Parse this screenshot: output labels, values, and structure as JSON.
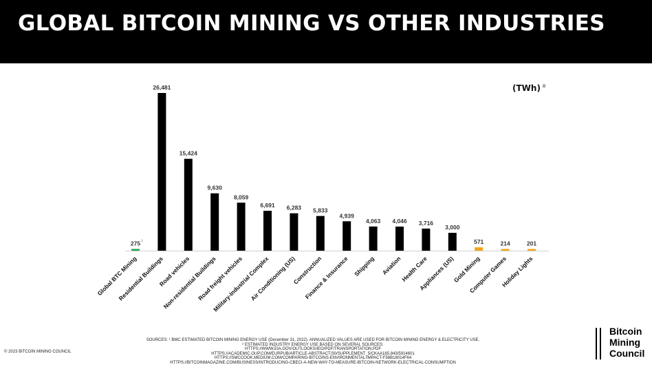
{
  "header": {
    "title": "GLOBAL BITCOIN MINING VS OTHER INDUSTRIES"
  },
  "chart_data": {
    "type": "bar",
    "title": "GLOBAL BITCOIN MINING VS OTHER INDUSTRIES",
    "unit_label": "(TWh)",
    "unit_note": "ii",
    "categories": [
      "Global BTC Mining",
      "Residential Buildings",
      "Road vehicles",
      "Non-residential Buildings",
      "Road freight vehicles",
      "Military-Industrial Complex",
      "Air Conditioning (US)",
      "Construction",
      "Finance & Insurance",
      "Shipping",
      "Aviation",
      "Health Care",
      "Appliances (US)",
      "Gold Mining",
      "Computer Games",
      "Holiday Lights"
    ],
    "values": [
      275,
      26481,
      15424,
      9630,
      8059,
      6691,
      6283,
      5833,
      4939,
      4063,
      4046,
      3716,
      3000,
      571,
      214,
      201
    ],
    "labels": [
      "275",
      "26,481",
      "15,424",
      "9,630",
      "8,059",
      "6,691",
      "6,283",
      "5,833",
      "4,939",
      "4,063",
      "4,046",
      "3,716",
      "3,000",
      "571",
      "214",
      "201"
    ],
    "label_notes": [
      "i",
      "",
      "",
      "",
      "",
      "",
      "",
      "",
      "",
      "",
      "",
      "",
      "",
      "",
      "",
      ""
    ],
    "colors": [
      "#22a64a",
      "#000000",
      "#000000",
      "#000000",
      "#000000",
      "#000000",
      "#000000",
      "#000000",
      "#000000",
      "#000000",
      "#000000",
      "#000000",
      "#000000",
      "#f2a51a",
      "#f2a51a",
      "#f2a51a"
    ],
    "ylim": [
      0,
      26481
    ],
    "grid": false,
    "legend": "none"
  },
  "sources": [
    "SOURCES: ¹ BMC ESTIMATED BITCOIN MINING ENERGY USE (December 31, 2022). ANNUALIZED VALUES ARE USED FOR BITCOIN MINING ENERGY & ELECTRICITY USE.",
    "² ESTIMATED INDUSTRY ENERGY USE BASED ON SEVERAL SOURCES:",
    "HTTPS://WWW.EIA.GOV/OUTLOOKS/IEO/PDF/TRANSPORTATION.PDF",
    "HTTPS://ACADEMIC.OUP.COM/EURPUB/ARTICLE-ABSTRACT/30/SUPPLEMENT_5/CKAA165.843/5914601",
    "HTTPS://SMCCOOK.MEDIUM.COM/COMPARING-BITCOINS-ENVIRONMENTAL-IMPACT-F56B18014F64",
    "HTTPS://BITCOINMAGAZINE.COM/BUSINESS/INTRODUCING-CBECI-A-NEW-WAY-TO-MEASURE-BITCOIN-NETWORK-ELECTRICAL-CONSUMPTION"
  ],
  "footer": {
    "copyright": "© 2023 BITCOIN MINING COUNCIL",
    "logo_lines": [
      "Bitcoin",
      "Mining",
      "Council"
    ]
  }
}
